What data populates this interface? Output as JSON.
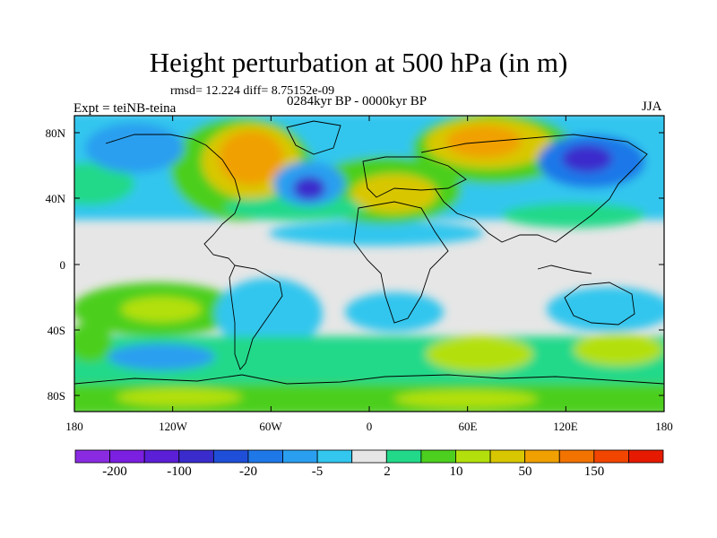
{
  "title": "Height perturbation at 500 hPa (in m)",
  "stats": "rmsd= 12.224 diff= 8.75152e-09",
  "period": "0284kyr BP - 0000kyr BP",
  "experiment": "Expt = teiNB-teina",
  "season": "JJA",
  "lat_ticks": [
    "80N",
    "40N",
    "0",
    "40S",
    "80S"
  ],
  "lon_ticks": [
    "180",
    "120W",
    "60W",
    "0",
    "60E",
    "120E",
    "180"
  ],
  "colorbar": {
    "colors": [
      "#8a2be2",
      "#7b1fe0",
      "#5a1fd6",
      "#3a2ccc",
      "#1f4fd8",
      "#1f78e8",
      "#2a9ff0",
      "#33c6ee",
      "#e6e6e6",
      "#22d98a",
      "#4ccf1f",
      "#b3e00c",
      "#d8c700",
      "#f0a000",
      "#f27300",
      "#f24500",
      "#e51a00"
    ],
    "labels": [
      "-200",
      "-100",
      "-20",
      "-5",
      "2",
      "10",
      "50",
      "150"
    ]
  },
  "palette": {
    "neutral": "#e6e6e6",
    "cyan": "#33c6ee",
    "sky": "#2a9ff0",
    "blue": "#1f78e8",
    "deepblue": "#3a2ccc",
    "mint": "#22d98a",
    "green": "#4ccf1f",
    "lime": "#b3e00c",
    "yellow": "#d8c700",
    "orange": "#f0a000",
    "darkorange": "#f27300"
  }
}
